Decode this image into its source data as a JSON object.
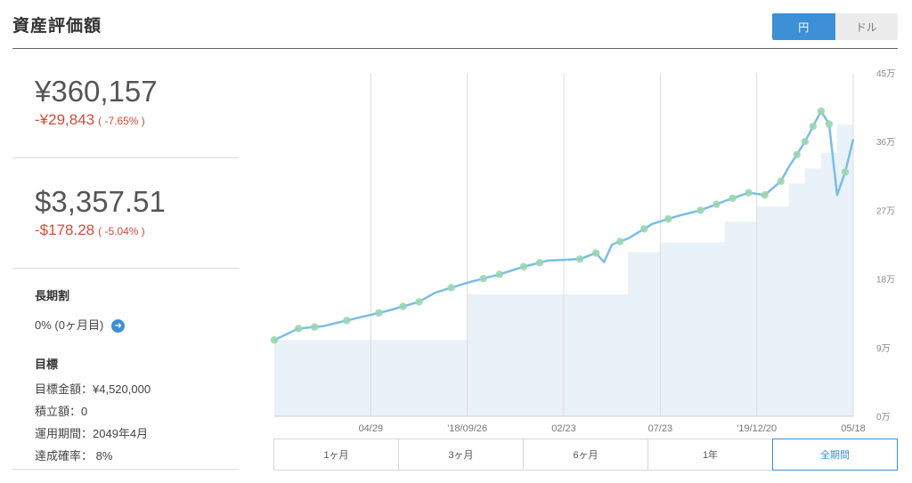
{
  "header": {
    "title": "資産評価額"
  },
  "currency_toggle": {
    "yen_label": "円",
    "dollar_label": "ドル",
    "selected": "円"
  },
  "summary": {
    "yen": {
      "value": "¥360,157",
      "change": "-¥29,843",
      "change_pct": "( -7.65% )"
    },
    "usd": {
      "value": "$3,357.51",
      "change": "-$178.28",
      "change_pct": "( -5.04% )"
    }
  },
  "long_term": {
    "heading": "長期割",
    "status": "0% (0ヶ月目)"
  },
  "goal": {
    "heading": "目標",
    "target_amount": "目標金額：¥4,520,000",
    "contribution": "積立額：0",
    "period": "運用期間：2049年4月",
    "probability": "達成確率： 8%"
  },
  "periods": {
    "items": [
      "1ヶ月",
      "3ヶ月",
      "6ヶ月",
      "1年",
      "全期間"
    ],
    "active": "全期間"
  },
  "colors": {
    "line": "#7bbde6",
    "area": "#e9f1f9",
    "marker": "#9ad6b0",
    "accent": "#3d8fd6",
    "negative": "#d64a3a"
  },
  "chart_data": {
    "type": "line",
    "x_tick_labels": [
      "04/29",
      "'18/09/26",
      "02/23",
      "07/23",
      "'19/12/20",
      "05/18"
    ],
    "y_tick_labels": [
      "0万",
      "9万",
      "18万",
      "27万",
      "36万",
      "45万"
    ],
    "y_ticks": [
      0,
      90000,
      180000,
      270000,
      360000,
      450000
    ],
    "ylim": [
      0,
      450000
    ],
    "x_range_months": [
      -36,
      0
    ],
    "grid": "vertical",
    "series": [
      {
        "name": "",
        "x_months": [
          -36,
          -34.5,
          -33,
          -31,
          -29,
          -27,
          -26,
          -24,
          -22,
          -20.5,
          -19,
          -17,
          -16,
          -15.5,
          -15,
          -14,
          -12.5,
          -11,
          -9.5,
          -8,
          -6.5,
          -5.5,
          -4.5,
          -4,
          -3.5,
          -3,
          -2.5,
          -2,
          -1.5,
          -1,
          -0.5,
          0
        ],
        "values": [
          100000,
          115000,
          118000,
          128000,
          138000,
          150000,
          162000,
          175000,
          186000,
          196000,
          204000,
          206000,
          214000,
          202000,
          225000,
          233000,
          252000,
          262000,
          270000,
          282000,
          293000,
          290000,
          308000,
          327000,
          343000,
          360000,
          380000,
          400000,
          383000,
          290000,
          320000,
          363000
        ]
      },
      {
        "name": "",
        "x_months": [
          -36,
          -24,
          -14,
          -12,
          -8,
          -6,
          -4,
          -3,
          -2,
          -1,
          0
        ],
        "values": [
          100000,
          160000,
          215000,
          228000,
          255000,
          275000,
          305000,
          325000,
          345000,
          382000,
          390000
        ]
      }
    ],
    "markers_x_months": [
      -36,
      -34.5,
      -33.5,
      -31.5,
      -29.5,
      -28,
      -27,
      -25,
      -23,
      -22,
      -20.5,
      -19.5,
      -17,
      -16,
      -14.5,
      -13,
      -11.5,
      -9.5,
      -8.5,
      -7.5,
      -6.5,
      -5.5,
      -4.5,
      -3.5,
      -3,
      -2.5,
      -2,
      -1.5,
      -0.5
    ]
  }
}
